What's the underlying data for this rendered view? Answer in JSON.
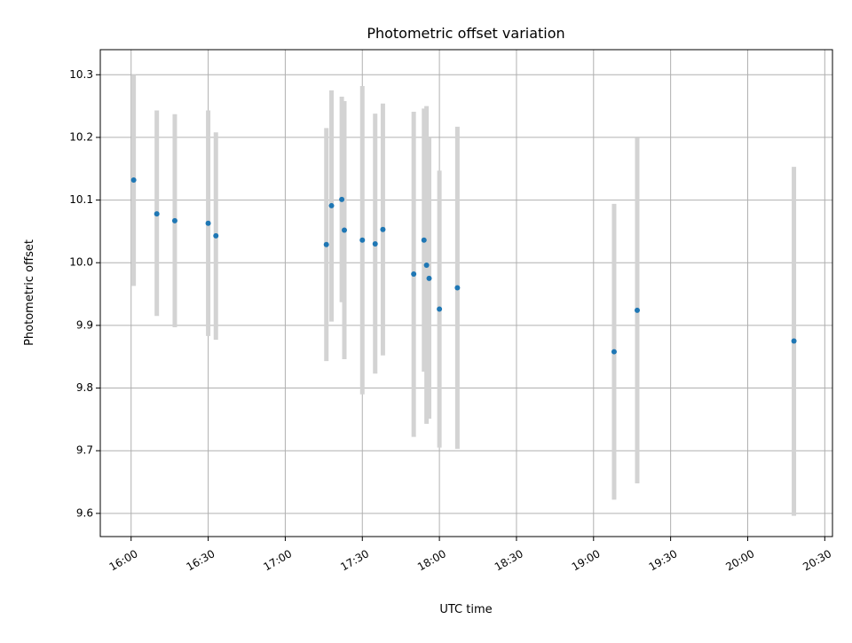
{
  "chart_data": {
    "type": "scatter",
    "title": "Photometric offset variation",
    "xlabel": "UTC time",
    "ylabel": "Photometric offset",
    "xlim": [
      "15:48",
      "20:33"
    ],
    "ylim": [
      9.563,
      10.34
    ],
    "grid": true,
    "x_ticks": [
      "16:00",
      "16:30",
      "17:00",
      "17:30",
      "18:00",
      "18:30",
      "19:00",
      "19:30",
      "20:00",
      "20:30"
    ],
    "y_ticks": [
      "9.6",
      "9.7",
      "9.8",
      "9.9",
      "10.0",
      "10.1",
      "10.2",
      "10.3"
    ],
    "colors": {
      "points": "#1f77b4",
      "errorbars": "#d3d3d3",
      "grid": "#b0b0b0"
    },
    "series": [
      {
        "points": [
          {
            "x": "16:01",
            "y": 10.132,
            "y_low": 9.963,
            "y_high": 10.3
          },
          {
            "x": "16:10",
            "y": 10.078,
            "y_low": 9.915,
            "y_high": 10.243
          },
          {
            "x": "16:17",
            "y": 10.067,
            "y_low": 9.897,
            "y_high": 10.237
          },
          {
            "x": "16:30",
            "y": 10.063,
            "y_low": 9.883,
            "y_high": 10.243
          },
          {
            "x": "16:33",
            "y": 10.043,
            "y_low": 9.877,
            "y_high": 10.208
          },
          {
            "x": "17:16",
            "y": 10.029,
            "y_low": 9.843,
            "y_high": 10.215
          },
          {
            "x": "17:18",
            "y": 10.091,
            "y_low": 9.906,
            "y_high": 10.275
          },
          {
            "x": "17:22",
            "y": 10.101,
            "y_low": 9.937,
            "y_high": 10.265
          },
          {
            "x": "17:23",
            "y": 10.052,
            "y_low": 9.846,
            "y_high": 10.258
          },
          {
            "x": "17:30",
            "y": 10.036,
            "y_low": 9.79,
            "y_high": 10.282
          },
          {
            "x": "17:35",
            "y": 10.03,
            "y_low": 9.823,
            "y_high": 10.238
          },
          {
            "x": "17:38",
            "y": 10.053,
            "y_low": 9.852,
            "y_high": 10.254
          },
          {
            "x": "17:50",
            "y": 9.982,
            "y_low": 9.722,
            "y_high": 10.241
          },
          {
            "x": "17:54",
            "y": 10.036,
            "y_low": 9.826,
            "y_high": 10.246
          },
          {
            "x": "17:55",
            "y": 9.996,
            "y_low": 9.743,
            "y_high": 10.25
          },
          {
            "x": "17:56",
            "y": 9.975,
            "y_low": 9.751,
            "y_high": 10.199
          },
          {
            "x": "18:00",
            "y": 9.926,
            "y_low": 9.705,
            "y_high": 10.147
          },
          {
            "x": "18:07",
            "y": 9.96,
            "y_low": 9.703,
            "y_high": 10.217
          },
          {
            "x": "19:08",
            "y": 9.858,
            "y_low": 9.622,
            "y_high": 10.094
          },
          {
            "x": "19:17",
            "y": 9.924,
            "y_low": 9.648,
            "y_high": 10.199
          },
          {
            "x": "20:18",
            "y": 9.875,
            "y_low": 9.596,
            "y_high": 10.153
          }
        ]
      }
    ]
  }
}
